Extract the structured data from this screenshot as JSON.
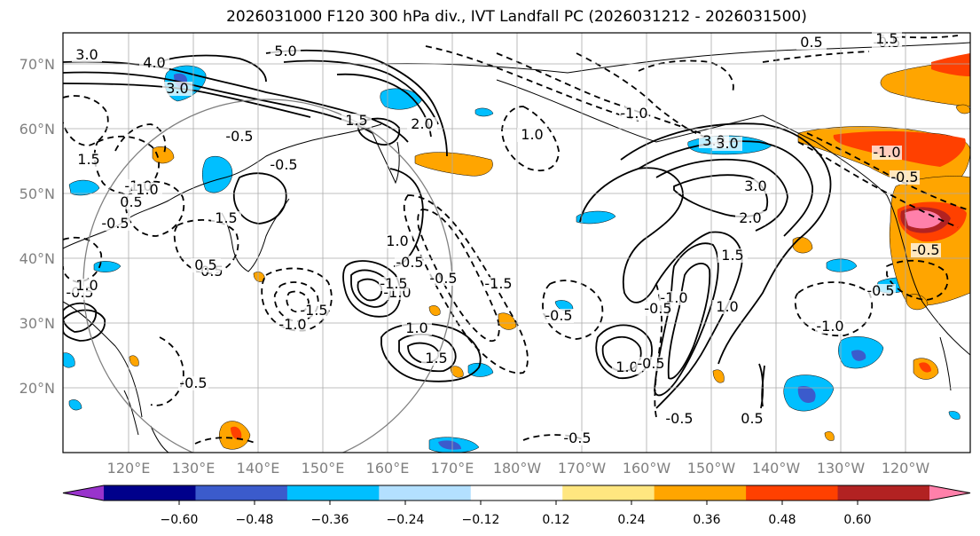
{
  "title": "2026031000 F120 300 hPa div., IVT Landfall PC (2026031212 - 2026031500)",
  "lat_labels": [
    "70°N",
    "60°N",
    "50°N",
    "40°N",
    "30°N",
    "20°N"
  ],
  "lon_labels": [
    "120°E",
    "130°E",
    "140°E",
    "150°E",
    "160°E",
    "170°E",
    "180°W",
    "170°W",
    "160°W",
    "150°W",
    "140°W",
    "130°W",
    "120°W"
  ],
  "colorbar": {
    "ticks": [
      "−0.60",
      "−0.48",
      "−0.36",
      "−0.24",
      "−0.12",
      "0.12",
      "0.24",
      "0.36",
      "0.48",
      "0.60"
    ],
    "colors": [
      "#9933cc",
      "#00008b",
      "#3b5bcc",
      "#00bfff",
      "#b3e0ff",
      "#ffffff",
      "#ffe680",
      "#ffa500",
      "#ff4000",
      "#b22222",
      "#ff80aa"
    ]
  },
  "contour_labels": [
    "3.0",
    "4.0",
    "5.0",
    "3.0",
    "1.5",
    "2.0",
    "-1.0",
    "1.0",
    "-0.5",
    "3.0",
    "3.0",
    "2.0",
    "1.5",
    "-1.0",
    "1.0",
    "0.5",
    "-0.5",
    "1.0",
    "1.5",
    "1.0",
    "-0.5",
    "-1.5",
    "-1.0",
    "-0.5",
    "-0.5",
    "0.5",
    "-0.5",
    "1.5",
    "-0.5",
    "-1.0",
    "-1.5",
    "0.5",
    "-0.5",
    "-1.0",
    "1.0",
    "1.5",
    "-0.5",
    "1.0",
    "-0.5",
    "-0.5",
    "-1.5",
    "1.0",
    "-1.0",
    "-0.5",
    "-0.5",
    "0.5",
    "-0.5",
    "-0.5",
    "-1.0",
    "-0.5",
    "-0.5",
    "3.0",
    "1.5"
  ]
}
